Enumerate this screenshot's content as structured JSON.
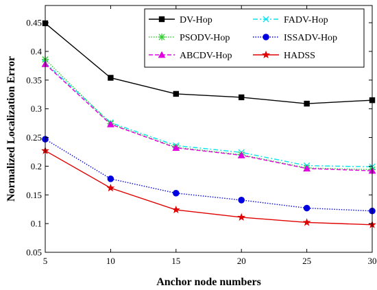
{
  "chart_data": {
    "type": "line",
    "title": "",
    "xlabel": "Anchor node numbers",
    "ylabel": "Normalized  Localization Error",
    "x": [
      5,
      10,
      15,
      20,
      25,
      30
    ],
    "xlim": [
      5,
      30
    ],
    "ylim": [
      0.05,
      0.48
    ],
    "xticks": [
      "5",
      "10",
      "15",
      "20",
      "25",
      "30"
    ],
    "yticks": [
      "0.05",
      "0.1",
      "0.15",
      "0.2",
      "0.25",
      "0.3",
      "0.35",
      "0.4",
      "0.45"
    ],
    "ytick_values": [
      0.05,
      0.1,
      0.15,
      0.2,
      0.25,
      0.3,
      0.35,
      0.4,
      0.45
    ],
    "grid": false,
    "legend_position": "top-right",
    "series": [
      {
        "name": "DV-Hop",
        "values": [
          0.449,
          0.354,
          0.326,
          0.32,
          0.309,
          0.315
        ],
        "color": "#000000",
        "dash": "solid",
        "marker": "square"
      },
      {
        "name": "FADV-Hop",
        "values": [
          0.38,
          0.276,
          0.236,
          0.224,
          0.201,
          0.199
        ],
        "color": "#00e5ee",
        "dash": "dashdot",
        "marker": "x"
      },
      {
        "name": "PSODV-Hop",
        "values": [
          0.386,
          0.274,
          0.233,
          0.22,
          0.197,
          0.194
        ],
        "color": "#33cc33",
        "dash": "dotted",
        "marker": "asterisk"
      },
      {
        "name": "ISSADV-Hop",
        "values": [
          0.247,
          0.178,
          0.153,
          0.141,
          0.127,
          0.122
        ],
        "color": "#0000e0",
        "dash": "dotted",
        "marker": "circle"
      },
      {
        "name": "ABCDV-Hop",
        "values": [
          0.378,
          0.273,
          0.232,
          0.219,
          0.196,
          0.192
        ],
        "color": "#e000e0",
        "dash": "dashed",
        "marker": "triangle"
      },
      {
        "name": "HADSS",
        "values": [
          0.227,
          0.162,
          0.124,
          0.111,
          0.102,
          0.098
        ],
        "color": "#e00000",
        "dash": "solid",
        "marker": "star"
      }
    ]
  }
}
